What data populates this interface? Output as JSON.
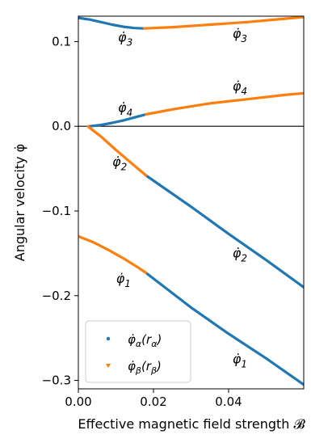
{
  "chart_data": {
    "type": "line",
    "xlabel": "Effective magnetic field strength 𝓑",
    "ylabel": "Angular velocity φ̇",
    "xlim": [
      0.0,
      0.06
    ],
    "ylim": [
      -0.31,
      0.13
    ],
    "xticks": [
      0.0,
      0.02,
      0.04
    ],
    "xtick_labels": [
      "0.00",
      "0.02",
      "0.04"
    ],
    "yticks": [
      0.1,
      0.0,
      -0.1,
      -0.2,
      -0.3
    ],
    "ytick_labels": [
      "0.1",
      "0.0",
      "−0.1",
      "−0.2",
      "−0.3"
    ],
    "grid": false,
    "horizontal_line_y": 0.0,
    "legend": {
      "placement": "lower-left",
      "entries": [
        {
          "label": "φ̇α(rα)",
          "color": "#1f77b4",
          "marker": "dot"
        },
        {
          "label": "φ̇β(rβ)",
          "color": "#ff7f0e",
          "marker": "triangle-down"
        }
      ]
    },
    "series": [
      {
        "name": "φ̇α(rα)",
        "color": "#1f77b4",
        "branches": [
          {
            "x": [
              0.0,
              0.003,
              0.006,
              0.009,
              0.012,
              0.015,
              0.0175
            ],
            "y": [
              0.128,
              0.126,
              0.123,
              0.12,
              0.1175,
              0.116,
              0.1155
            ]
          },
          {
            "x": [
              0.003,
              0.006,
              0.009,
              0.012,
              0.015,
              0.018
            ],
            "y": [
              0.0,
              0.0015,
              0.004,
              0.007,
              0.0105,
              0.014
            ]
          },
          {
            "x": [
              0.018,
              0.03,
              0.04,
              0.05,
              0.06
            ],
            "y": [
              -0.058,
              -0.095,
              -0.127,
              -0.158,
              -0.19
            ]
          },
          {
            "x": [
              0.018,
              0.03,
              0.04,
              0.05,
              0.06
            ],
            "y": [
              -0.173,
              -0.214,
              -0.245,
              -0.274,
              -0.305
            ]
          }
        ]
      },
      {
        "name": "φ̇β(rβ)",
        "color": "#ff7f0e",
        "branches": [
          {
            "x": [
              0.0175,
              0.025,
              0.035,
              0.045,
              0.055,
              0.06
            ],
            "y": [
              0.1155,
              0.117,
              0.12,
              0.123,
              0.127,
              0.129
            ]
          },
          {
            "x": [
              0.018,
              0.025,
              0.035,
              0.045,
              0.055,
              0.06
            ],
            "y": [
              0.014,
              0.02,
              0.027,
              0.032,
              0.037,
              0.039
            ]
          },
          {
            "x": [
              0.0025,
              0.006,
              0.01,
              0.014,
              0.018
            ],
            "y": [
              0.0,
              -0.012,
              -0.028,
              -0.043,
              -0.058
            ]
          },
          {
            "x": [
              0.0,
              0.004,
              0.008,
              0.012,
              0.016,
              0.018
            ],
            "y": [
              -0.13,
              -0.137,
              -0.146,
              -0.156,
              -0.167,
              -0.173
            ]
          }
        ]
      }
    ],
    "annotations": [
      {
        "text": "φ̇3",
        "x": 0.0125,
        "y": 0.1,
        "color": "#1f77b4"
      },
      {
        "text": "φ̇3",
        "x": 0.043,
        "y": 0.104,
        "color": "#ff7f0e"
      },
      {
        "text": "φ̇4",
        "x": 0.0125,
        "y": 0.017,
        "color": "#1f77b4"
      },
      {
        "text": "φ̇4",
        "x": 0.043,
        "y": 0.042,
        "color": "#ff7f0e"
      },
      {
        "text": "φ̇2",
        "x": 0.011,
        "y": -0.047,
        "color": "#ff7f0e"
      },
      {
        "text": "φ̇2",
        "x": 0.043,
        "y": -0.155,
        "color": "#1f77b4"
      },
      {
        "text": "φ̇1",
        "x": 0.012,
        "y": -0.185,
        "color": "#ff7f0e"
      },
      {
        "text": "φ̇1",
        "x": 0.043,
        "y": -0.28,
        "color": "#1f77b4"
      }
    ]
  }
}
